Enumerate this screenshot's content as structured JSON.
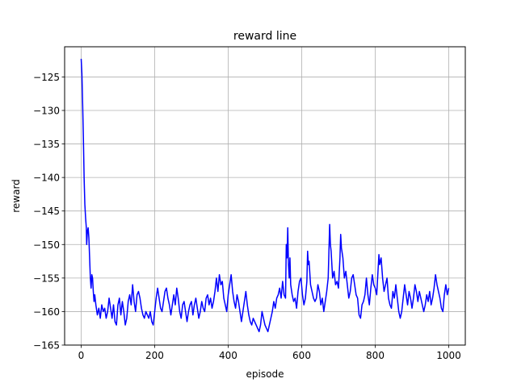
{
  "chart_data": {
    "type": "line",
    "title": "reward line",
    "xlabel": "episode",
    "ylabel": "reward",
    "xlim": [
      -45,
      1045
    ],
    "ylim": [
      -165,
      -120.5
    ],
    "xticks": [
      0,
      200,
      400,
      600,
      800,
      1000
    ],
    "yticks": [
      -165,
      -160,
      -155,
      -150,
      -145,
      -140,
      -135,
      -130,
      -125
    ],
    "grid": true,
    "line_color": "#0000ff",
    "series": [
      {
        "points": [
          [
            0,
            -122.3
          ],
          [
            2,
            -124.5
          ],
          [
            4,
            -129
          ],
          [
            6,
            -134
          ],
          [
            8,
            -140
          ],
          [
            10,
            -144
          ],
          [
            12,
            -146
          ],
          [
            14,
            -147.5
          ],
          [
            15,
            -150
          ],
          [
            17,
            -148
          ],
          [
            19,
            -147.5
          ],
          [
            21,
            -149
          ],
          [
            23,
            -152
          ],
          [
            25,
            -155
          ],
          [
            27,
            -156.5
          ],
          [
            29,
            -154.5
          ],
          [
            31,
            -155
          ],
          [
            33,
            -157
          ],
          [
            35,
            -158.5
          ],
          [
            37,
            -157.5
          ],
          [
            40,
            -159
          ],
          [
            44,
            -160.5
          ],
          [
            48,
            -159.5
          ],
          [
            52,
            -161
          ],
          [
            56,
            -159
          ],
          [
            60,
            -160
          ],
          [
            64,
            -159.5
          ],
          [
            68,
            -161
          ],
          [
            72,
            -160
          ],
          [
            76,
            -158
          ],
          [
            80,
            -159.5
          ],
          [
            84,
            -161
          ],
          [
            88,
            -159
          ],
          [
            92,
            -161.5
          ],
          [
            96,
            -162
          ],
          [
            100,
            -159
          ],
          [
            104,
            -158
          ],
          [
            108,
            -160.5
          ],
          [
            112,
            -158.5
          ],
          [
            116,
            -160
          ],
          [
            120,
            -162
          ],
          [
            124,
            -161
          ],
          [
            128,
            -158.5
          ],
          [
            132,
            -157.5
          ],
          [
            136,
            -159
          ],
          [
            140,
            -156
          ],
          [
            144,
            -158.5
          ],
          [
            148,
            -160
          ],
          [
            152,
            -157.5
          ],
          [
            156,
            -157
          ],
          [
            160,
            -158
          ],
          [
            164,
            -159.5
          ],
          [
            168,
            -160.5
          ],
          [
            172,
            -161
          ],
          [
            176,
            -160
          ],
          [
            180,
            -160.5
          ],
          [
            184,
            -161
          ],
          [
            188,
            -160
          ],
          [
            192,
            -161.5
          ],
          [
            196,
            -162
          ],
          [
            200,
            -160
          ],
          [
            204,
            -158
          ],
          [
            208,
            -156.5
          ],
          [
            212,
            -158
          ],
          [
            216,
            -159.5
          ],
          [
            220,
            -160
          ],
          [
            224,
            -158.5
          ],
          [
            228,
            -157
          ],
          [
            232,
            -156.5
          ],
          [
            236,
            -158
          ],
          [
            240,
            -159
          ],
          [
            244,
            -160.5
          ],
          [
            248,
            -159
          ],
          [
            252,
            -157.5
          ],
          [
            256,
            -159
          ],
          [
            260,
            -156.5
          ],
          [
            264,
            -158
          ],
          [
            268,
            -160
          ],
          [
            272,
            -161
          ],
          [
            276,
            -159
          ],
          [
            280,
            -158.5
          ],
          [
            284,
            -160
          ],
          [
            288,
            -161.5
          ],
          [
            292,
            -160
          ],
          [
            296,
            -159
          ],
          [
            300,
            -158.5
          ],
          [
            304,
            -160.5
          ],
          [
            308,
            -159
          ],
          [
            312,
            -158
          ],
          [
            316,
            -159.5
          ],
          [
            320,
            -161
          ],
          [
            324,
            -160
          ],
          [
            328,
            -158.5
          ],
          [
            332,
            -159.5
          ],
          [
            336,
            -160
          ],
          [
            340,
            -158
          ],
          [
            344,
            -157.5
          ],
          [
            348,
            -159
          ],
          [
            352,
            -158
          ],
          [
            356,
            -159.5
          ],
          [
            360,
            -158.5
          ],
          [
            364,
            -157
          ],
          [
            368,
            -155
          ],
          [
            372,
            -157
          ],
          [
            376,
            -154.5
          ],
          [
            380,
            -156
          ],
          [
            384,
            -155.5
          ],
          [
            388,
            -158
          ],
          [
            392,
            -159
          ],
          [
            396,
            -160
          ],
          [
            400,
            -157.5
          ],
          [
            404,
            -156
          ],
          [
            408,
            -154.5
          ],
          [
            412,
            -157
          ],
          [
            416,
            -158.5
          ],
          [
            420,
            -159.5
          ],
          [
            424,
            -157.5
          ],
          [
            428,
            -158.5
          ],
          [
            432,
            -160
          ],
          [
            436,
            -161.5
          ],
          [
            440,
            -160
          ],
          [
            444,
            -158.5
          ],
          [
            448,
            -157
          ],
          [
            452,
            -159
          ],
          [
            456,
            -160.5
          ],
          [
            460,
            -161.5
          ],
          [
            464,
            -162
          ],
          [
            468,
            -161
          ],
          [
            472,
            -161.5
          ],
          [
            476,
            -162
          ],
          [
            480,
            -162.5
          ],
          [
            484,
            -163
          ],
          [
            488,
            -162
          ],
          [
            492,
            -160
          ],
          [
            496,
            -161
          ],
          [
            500,
            -162
          ],
          [
            504,
            -162.5
          ],
          [
            508,
            -163
          ],
          [
            512,
            -162
          ],
          [
            516,
            -161
          ],
          [
            520,
            -160
          ],
          [
            524,
            -158.5
          ],
          [
            528,
            -159.5
          ],
          [
            532,
            -158
          ],
          [
            536,
            -157.5
          ],
          [
            540,
            -156.5
          ],
          [
            544,
            -158
          ],
          [
            548,
            -155.5
          ],
          [
            552,
            -157.5
          ],
          [
            556,
            -158
          ],
          [
            558,
            -150
          ],
          [
            560,
            -152
          ],
          [
            562,
            -147.5
          ],
          [
            564,
            -153
          ],
          [
            566,
            -155
          ],
          [
            568,
            -152
          ],
          [
            570,
            -156
          ],
          [
            574,
            -157.5
          ],
          [
            578,
            -158.5
          ],
          [
            582,
            -158
          ],
          [
            586,
            -159.5
          ],
          [
            590,
            -157
          ],
          [
            594,
            -155.5
          ],
          [
            598,
            -155
          ],
          [
            602,
            -157.5
          ],
          [
            606,
            -159
          ],
          [
            610,
            -158
          ],
          [
            614,
            -155.5
          ],
          [
            616,
            -151
          ],
          [
            618,
            -153
          ],
          [
            620,
            -152.5
          ],
          [
            624,
            -156
          ],
          [
            628,
            -157
          ],
          [
            632,
            -158
          ],
          [
            636,
            -158.5
          ],
          [
            640,
            -158
          ],
          [
            644,
            -156
          ],
          [
            648,
            -157
          ],
          [
            652,
            -159
          ],
          [
            656,
            -158
          ],
          [
            660,
            -160
          ],
          [
            664,
            -158.5
          ],
          [
            668,
            -157
          ],
          [
            672,
            -155
          ],
          [
            676,
            -147
          ],
          [
            678,
            -150
          ],
          [
            680,
            -151
          ],
          [
            684,
            -155
          ],
          [
            688,
            -154
          ],
          [
            692,
            -156
          ],
          [
            696,
            -155.5
          ],
          [
            700,
            -156.5
          ],
          [
            704,
            -152
          ],
          [
            706,
            -148.5
          ],
          [
            708,
            -150.5
          ],
          [
            712,
            -152
          ],
          [
            716,
            -155
          ],
          [
            720,
            -154
          ],
          [
            724,
            -156
          ],
          [
            728,
            -158
          ],
          [
            732,
            -157
          ],
          [
            736,
            -155
          ],
          [
            740,
            -154.5
          ],
          [
            744,
            -156
          ],
          [
            748,
            -157.5
          ],
          [
            752,
            -158
          ],
          [
            756,
            -160.5
          ],
          [
            760,
            -161
          ],
          [
            764,
            -159
          ],
          [
            768,
            -158.5
          ],
          [
            772,
            -157.5
          ],
          [
            776,
            -155
          ],
          [
            780,
            -157.5
          ],
          [
            784,
            -159
          ],
          [
            788,
            -156.5
          ],
          [
            792,
            -154.5
          ],
          [
            796,
            -156
          ],
          [
            800,
            -156.5
          ],
          [
            804,
            -157.5
          ],
          [
            808,
            -153.5
          ],
          [
            810,
            -151.5
          ],
          [
            812,
            -153
          ],
          [
            816,
            -152
          ],
          [
            820,
            -155
          ],
          [
            824,
            -157
          ],
          [
            828,
            -156
          ],
          [
            832,
            -155
          ],
          [
            836,
            -158
          ],
          [
            840,
            -159
          ],
          [
            844,
            -159.5
          ],
          [
            848,
            -157
          ],
          [
            852,
            -158
          ],
          [
            856,
            -156
          ],
          [
            860,
            -158
          ],
          [
            864,
            -160
          ],
          [
            868,
            -161
          ],
          [
            872,
            -160
          ],
          [
            876,
            -158
          ],
          [
            880,
            -156
          ],
          [
            884,
            -157.5
          ],
          [
            888,
            -159
          ],
          [
            892,
            -157
          ],
          [
            896,
            -158
          ],
          [
            900,
            -159.5
          ],
          [
            904,
            -158
          ],
          [
            908,
            -156
          ],
          [
            912,
            -157
          ],
          [
            916,
            -158.5
          ],
          [
            920,
            -157
          ],
          [
            924,
            -158
          ],
          [
            928,
            -159
          ],
          [
            932,
            -160
          ],
          [
            936,
            -159
          ],
          [
            940,
            -157.5
          ],
          [
            944,
            -158.5
          ],
          [
            948,
            -157
          ],
          [
            952,
            -159
          ],
          [
            956,
            -158
          ],
          [
            960,
            -156.5
          ],
          [
            964,
            -154.5
          ],
          [
            968,
            -156
          ],
          [
            972,
            -157
          ],
          [
            976,
            -158
          ],
          [
            980,
            -159.5
          ],
          [
            984,
            -160
          ],
          [
            988,
            -157.5
          ],
          [
            992,
            -156
          ],
          [
            996,
            -157.5
          ],
          [
            1000,
            -156.5
          ]
        ]
      }
    ]
  }
}
